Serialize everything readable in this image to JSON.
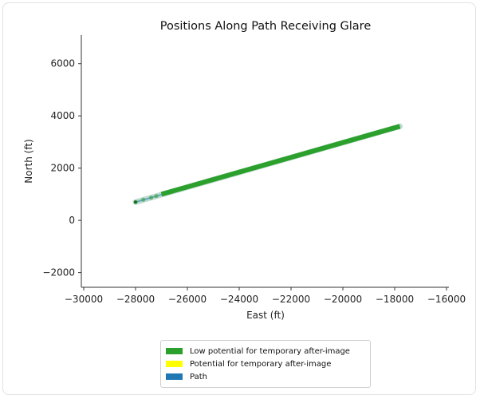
{
  "chart_data": {
    "type": "line",
    "title": "Positions Along Path Receiving Glare",
    "xlabel": "East (ft)",
    "ylabel": "North (ft)",
    "xlim": [
      -30000,
      -16000
    ],
    "ylim": [
      -2500,
      7000
    ],
    "xticks": [
      -30000,
      -28000,
      -26000,
      -24000,
      -22000,
      -20000,
      -18000,
      -16000
    ],
    "xtick_labels": [
      "−30000",
      "−28000",
      "−26000",
      "−24000",
      "−22000",
      "−20000",
      "−18000",
      "−16000"
    ],
    "yticks": [
      -2000,
      0,
      2000,
      4000,
      6000
    ],
    "ytick_labels": [
      "−2000",
      "0",
      "2000",
      "4000",
      "6000"
    ],
    "series": [
      {
        "name": "Path",
        "x": [
          -28000,
          -17800
        ],
        "y": [
          700,
          3600
        ]
      },
      {
        "name": "Low potential for temporary after-image",
        "x": [
          -27000,
          -17800
        ],
        "y": [
          1000,
          3600
        ]
      },
      {
        "name": "Potential for temporary after-image",
        "x": [],
        "y": []
      }
    ],
    "scattered_glare_points": {
      "x": [
        -28000,
        -27700,
        -27400,
        -27200
      ],
      "y": [
        700,
        790,
        870,
        930
      ]
    },
    "legend_placement": "below",
    "legend": [
      {
        "label": "Low potential for temporary after-image",
        "color": "#2ca02c"
      },
      {
        "label": "Potential for temporary after-image",
        "color": "#ffff00"
      },
      {
        "label": "Path",
        "color": "#1f77b4"
      }
    ],
    "grid": false,
    "colors": {
      "low": "#2ca02c",
      "potential": "#ffff00",
      "path": "#1f77b4",
      "path_halo": "#b7d6cd"
    }
  }
}
